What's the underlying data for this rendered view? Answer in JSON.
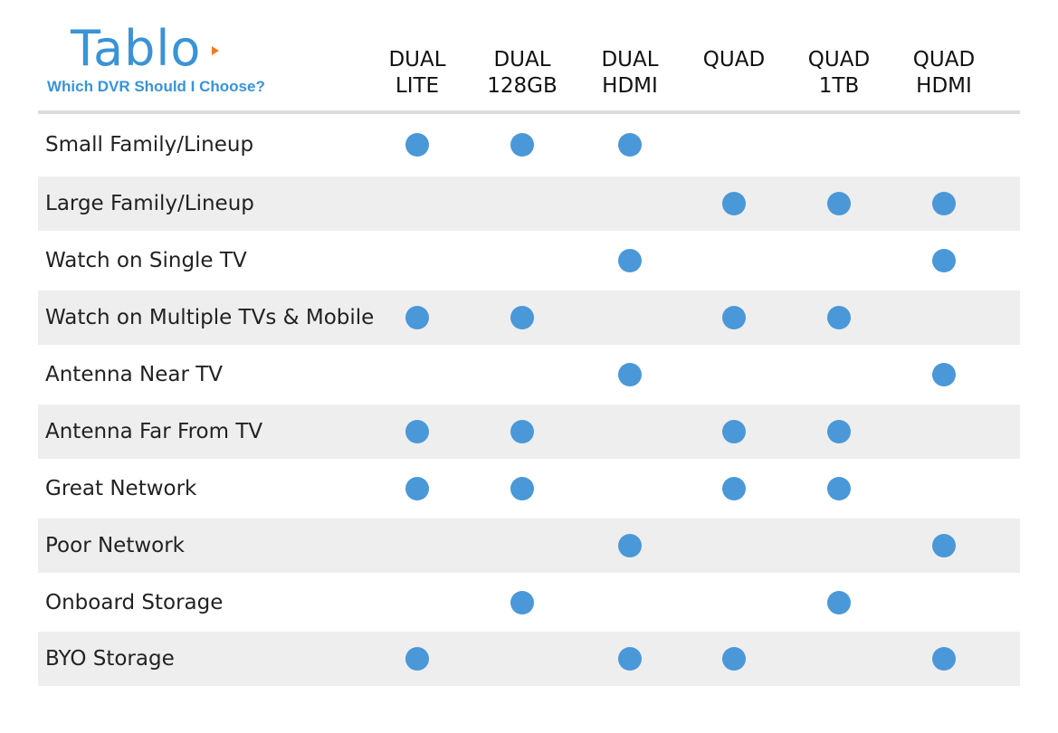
{
  "brand": {
    "logo_text": "Tablo",
    "tagline": "Which DVR Should I Choose?",
    "accent_color": "#3a93d6",
    "logo_play_color": "#f07a22"
  },
  "columns": [
    {
      "line1": "DUAL",
      "line2": "LITE"
    },
    {
      "line1": "DUAL",
      "line2": "128GB"
    },
    {
      "line1": "DUAL",
      "line2": "HDMI"
    },
    {
      "line1": "QUAD",
      "line2": ""
    },
    {
      "line1": "QUAD",
      "line2": "1TB"
    },
    {
      "line1": "QUAD",
      "line2": "HDMI"
    }
  ],
  "rows": [
    {
      "label": "Small Family/Lineup",
      "marks": [
        true,
        true,
        true,
        false,
        false,
        false
      ]
    },
    {
      "label": "Large Family/Lineup",
      "marks": [
        false,
        false,
        false,
        true,
        true,
        true
      ]
    },
    {
      "label": "Watch on Single TV",
      "marks": [
        false,
        false,
        true,
        false,
        false,
        true
      ]
    },
    {
      "label": "Watch on Multiple TVs & Mobile",
      "marks": [
        true,
        true,
        false,
        true,
        true,
        false
      ]
    },
    {
      "label": "Antenna Near TV",
      "marks": [
        false,
        false,
        true,
        false,
        false,
        true
      ]
    },
    {
      "label": "Antenna Far From TV",
      "marks": [
        true,
        true,
        false,
        true,
        true,
        false
      ]
    },
    {
      "label": "Great Network",
      "marks": [
        true,
        true,
        false,
        true,
        true,
        false
      ]
    },
    {
      "label": "Poor Network",
      "marks": [
        false,
        false,
        true,
        false,
        false,
        true
      ]
    },
    {
      "label": "Onboard Storage",
      "marks": [
        false,
        true,
        false,
        false,
        true,
        false
      ]
    },
    {
      "label": "BYO Storage",
      "marks": [
        true,
        false,
        true,
        true,
        false,
        true
      ]
    }
  ],
  "dot_color": "#4a98d8",
  "shaded_row_color": "#eeeeee"
}
